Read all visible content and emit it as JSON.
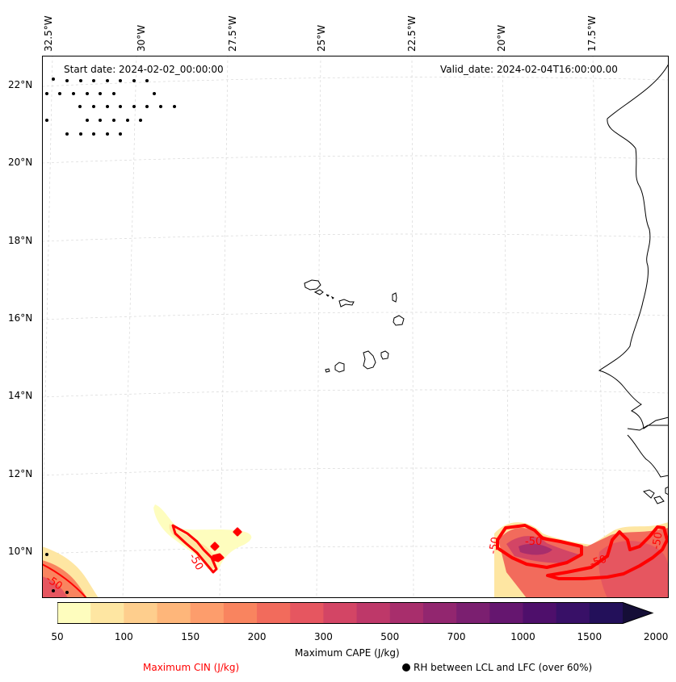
{
  "map": {
    "start_date": "Start date: 2024-02-02_00:00:00",
    "valid_date": "Valid_date: 2024-02-04T16:00:00.00",
    "lon_labels": [
      "32.5°W",
      "30°W",
      "27.5°W",
      "25°W",
      "22.5°W",
      "20°W",
      "17.5°W"
    ],
    "lat_labels": [
      "22°N",
      "20°N",
      "18°N",
      "16°N",
      "14°N",
      "12°N",
      "10°N"
    ],
    "contour_labels": [
      "-50",
      "-50",
      "-50",
      "-50",
      "-50",
      "-50"
    ]
  },
  "colorbar": {
    "title": "Maximum CAPE (J/kg)",
    "ticks": [
      "50",
      "100",
      "150",
      "200",
      "300",
      "500",
      "700",
      "1000",
      "1500",
      "2000"
    ],
    "colors": [
      "#fefdbe",
      "#fee6a2",
      "#fece8d",
      "#feb67a",
      "#fd9d6c",
      "#f9845f",
      "#f26b5c",
      "#e65660",
      "#d34565",
      "#be3869",
      "#a82e6c",
      "#92266f",
      "#7b1f70",
      "#65166f",
      "#4e0f6b",
      "#381067",
      "#23105a",
      "#150e37"
    ]
  },
  "legend": {
    "cin_label": "Maximum CIN (J/kg)",
    "rh_label": "RH between LCL and LFC (over 60%)",
    "cin_color": "#ff0000"
  }
}
